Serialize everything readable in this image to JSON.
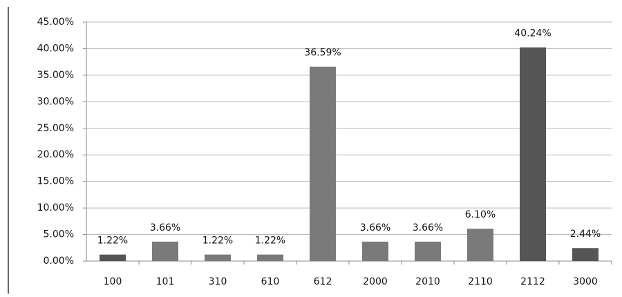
{
  "chart_data": {
    "type": "bar",
    "categories": [
      "100",
      "101",
      "310",
      "610",
      "612",
      "2000",
      "2010",
      "2110",
      "2112",
      "3000"
    ],
    "values": [
      1.22,
      3.66,
      1.22,
      1.22,
      36.59,
      3.66,
      3.66,
      6.1,
      40.24,
      2.44
    ],
    "value_labels": [
      "1.22%",
      "3.66%",
      "1.22%",
      "1.22%",
      "36.59%",
      "3.66%",
      "3.66%",
      "6.10%",
      "40.24%",
      "2.44%"
    ],
    "colors": [
      "#555555",
      "#7a7a7a",
      "#7a7a7a",
      "#7a7a7a",
      "#7a7a7a",
      "#7a7a7a",
      "#7a7a7a",
      "#7a7a7a",
      "#555555",
      "#555555"
    ],
    "ylim": [
      0,
      45
    ],
    "yticks": [
      {
        "value": 0,
        "label": "0.00%"
      },
      {
        "value": 5,
        "label": "5.00%"
      },
      {
        "value": 10,
        "label": "10.00%"
      },
      {
        "value": 15,
        "label": "15.00%"
      },
      {
        "value": 20,
        "label": "20.00%"
      },
      {
        "value": 25,
        "label": "25.00%"
      },
      {
        "value": 30,
        "label": "30.00%"
      },
      {
        "value": 35,
        "label": "35.00%"
      },
      {
        "value": 40,
        "label": "40.00%"
      },
      {
        "value": 45,
        "label": "45.00%"
      }
    ],
    "grid": true
  }
}
